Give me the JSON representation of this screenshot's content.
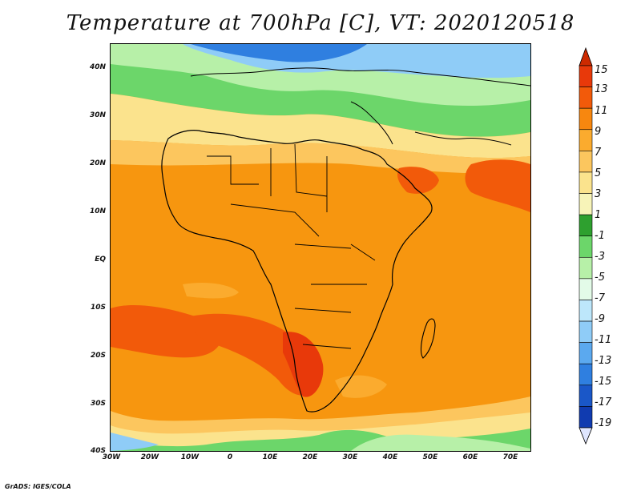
{
  "title": "Temperature at 700hPa [C], VT: 2020120518",
  "credit": "GrADS: IGES/COLA",
  "lat_labels": [
    "40N",
    "30N",
    "20N",
    "10N",
    "EQ",
    "10S",
    "20S",
    "30S",
    "40S"
  ],
  "lon_labels": [
    "30W",
    "20W",
    "10W",
    "0",
    "10E",
    "20E",
    "30E",
    "40E",
    "50E",
    "60E",
    "70E"
  ],
  "colorbar": {
    "labels": [
      "15",
      "13",
      "11",
      "9",
      "7",
      "5",
      "3",
      "1",
      "-1",
      "-3",
      "-5",
      "-7",
      "-9",
      "-11",
      "-13",
      "-15",
      "-17",
      "-19"
    ],
    "colors": [
      "#cd2a00",
      "#e8390a",
      "#f25a0a",
      "#f7870f",
      "#fbab2e",
      "#fcc65e",
      "#fbe38d",
      "#f7f4b8",
      "#2ea02f",
      "#6cd66a",
      "#b7f0a8",
      "#e3fbe8",
      "#bde7fb",
      "#8fccf7",
      "#5ba9ef",
      "#2f7fe0",
      "#1a57c8",
      "#103bb0",
      "#0a2185"
    ]
  },
  "fields": {
    "background_color": "#f7960f"
  }
}
